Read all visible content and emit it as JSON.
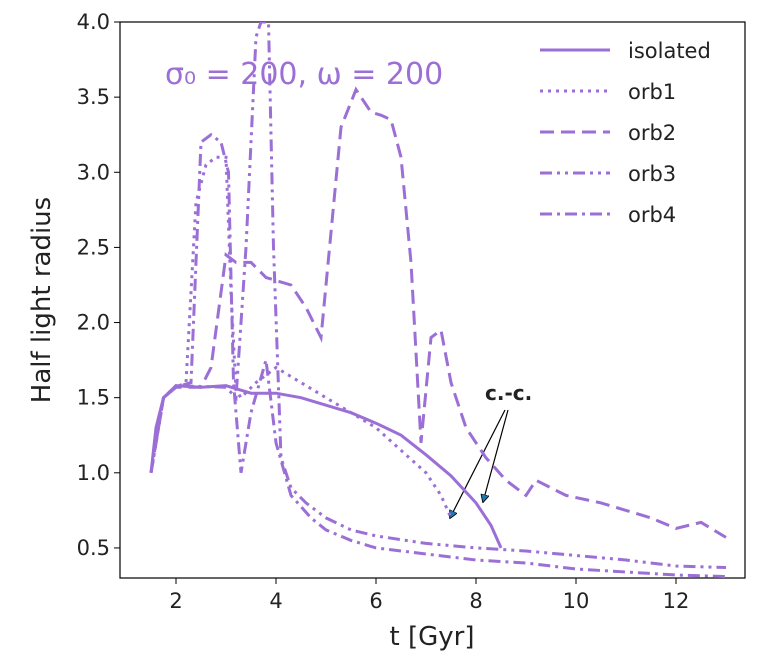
{
  "chart_data": {
    "type": "line",
    "xlabel": "t [Gyr]",
    "ylabel": "Half light radius",
    "annotations": [
      "σ₀ = 200, ω = 200",
      "c.-c."
    ],
    "xlim": [
      0.88,
      13.38
    ],
    "ylim": [
      0.3,
      4.0
    ],
    "xticks": [
      2,
      4,
      6,
      8,
      10,
      12
    ],
    "yticks": [
      0.5,
      {
        "value": 1,
        "label": "1.0"
      },
      1.5,
      {
        "value": 2,
        "label": "2.0"
      },
      2.5,
      {
        "value": 3,
        "label": "3.0"
      },
      3.5,
      {
        "value": 4,
        "label": "4.0"
      }
    ],
    "legend": "upper right",
    "series": [
      {
        "name": "isolated",
        "color": "#9b6fd6",
        "linestyle": "solid",
        "x": [
          1.5,
          1.6,
          1.75,
          2,
          2.5,
          3,
          3.3,
          3.5,
          4,
          4.5,
          5,
          5.5,
          6,
          6.5,
          7,
          7.5,
          8,
          8.3,
          8.5
        ],
        "values": [
          1.0,
          1.3,
          1.5,
          1.58,
          1.57,
          1.58,
          1.55,
          1.53,
          1.53,
          1.5,
          1.45,
          1.4,
          1.33,
          1.25,
          1.12,
          0.98,
          0.8,
          0.65,
          0.5
        ]
      },
      {
        "name": "orb1",
        "color": "#9b6fd6",
        "linestyle": "dotted",
        "x": [
          1.5,
          1.75,
          2,
          2.2,
          2.4,
          2.6,
          2.8,
          3.0,
          3.1,
          3.2,
          3.3,
          3.6,
          4,
          4.5,
          5,
          5.5,
          6,
          6.5,
          7,
          7.3,
          7.5
        ],
        "values": [
          1.0,
          1.5,
          1.57,
          1.6,
          2.8,
          3.05,
          3.1,
          3.1,
          2.2,
          1.55,
          1.5,
          1.6,
          1.7,
          1.6,
          1.5,
          1.4,
          1.3,
          1.15,
          1.0,
          0.85,
          0.7
        ]
      },
      {
        "name": "orb2",
        "color": "#9b6fd6",
        "linestyle": "dashed",
        "x": [
          1.5,
          1.75,
          2,
          2.5,
          2.7,
          2.9,
          3.0,
          3.2,
          3.5,
          3.8,
          4.3,
          4.6,
          4.9,
          5.1,
          5.3,
          5.6,
          5.9,
          6.1,
          6.3,
          6.5,
          6.7,
          6.9,
          7.1,
          7.3,
          7.5,
          7.8,
          8.2,
          8.6,
          9,
          9.2,
          9.8,
          10.5,
          11,
          11.5,
          12,
          12.5,
          13
        ],
        "values": [
          1.0,
          1.5,
          1.57,
          1.57,
          1.7,
          2.2,
          2.45,
          2.4,
          2.4,
          2.3,
          2.25,
          2.1,
          1.9,
          2.6,
          3.3,
          3.55,
          3.4,
          3.38,
          3.35,
          3.1,
          2.4,
          1.2,
          1.9,
          1.95,
          1.6,
          1.3,
          1.1,
          0.95,
          0.85,
          0.95,
          0.85,
          0.8,
          0.75,
          0.7,
          0.63,
          0.67,
          0.57
        ]
      },
      {
        "name": "orb3",
        "color": "#9b6fd6",
        "linestyle": "dashdotdot",
        "x": [
          1.5,
          1.75,
          2,
          3,
          3.2,
          3.4,
          3.6,
          3.7,
          3.85,
          3.95,
          4.1,
          4.3,
          4.6,
          5,
          5.5,
          6,
          7,
          8,
          9,
          10,
          11,
          12,
          13
        ],
        "values": [
          1.0,
          1.5,
          1.58,
          1.57,
          1.5,
          2.5,
          3.9,
          4.0,
          4.0,
          2.5,
          1.1,
          0.9,
          0.8,
          0.7,
          0.62,
          0.58,
          0.53,
          0.5,
          0.48,
          0.45,
          0.42,
          0.38,
          0.37
        ]
      },
      {
        "name": "orb4",
        "color": "#9b6fd6",
        "linestyle": "dashdot",
        "x": [
          1.5,
          1.75,
          2,
          2.3,
          2.5,
          2.7,
          2.9,
          3.05,
          3.15,
          3.3,
          3.5,
          3.8,
          4.0,
          4.3,
          4.7,
          5,
          5.5,
          6,
          7,
          8,
          9,
          10,
          11,
          12,
          13
        ],
        "values": [
          1.0,
          1.5,
          1.57,
          1.6,
          3.2,
          3.25,
          3.2,
          3.0,
          1.6,
          1.0,
          1.4,
          1.75,
          1.2,
          0.85,
          0.7,
          0.62,
          0.55,
          0.5,
          0.46,
          0.42,
          0.4,
          0.36,
          0.34,
          0.32,
          0.31
        ]
      }
    ]
  }
}
